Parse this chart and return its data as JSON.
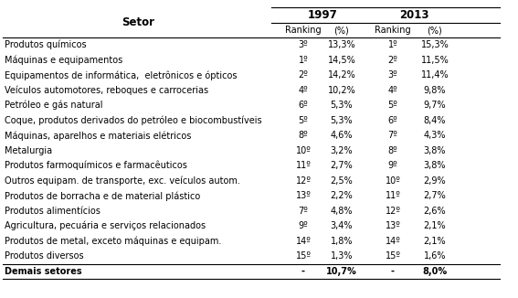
{
  "title_col": "Setor",
  "year_headers": [
    "1997",
    "2013"
  ],
  "sub_headers": [
    "Ranking",
    "(%)",
    "Ranking",
    "(%)"
  ],
  "rows": [
    [
      "Produtos químicos",
      "3º",
      "13,3%",
      "1º",
      "15,3%"
    ],
    [
      "Máquinas e equipamentos",
      "1º",
      "14,5%",
      "2º",
      "11,5%"
    ],
    [
      "Equipamentos de informática,  eletrônicos e ópticos",
      "2º",
      "14,2%",
      "3º",
      "11,4%"
    ],
    [
      "Veículos automotores, reboques e carrocerias",
      "4º",
      "10,2%",
      "4º",
      "9,8%"
    ],
    [
      "Petróleo e gás natural",
      "6º",
      "5,3%",
      "5º",
      "9,7%"
    ],
    [
      "Coque, produtos derivados do petróleo e biocombustíveis",
      "5º",
      "5,3%",
      "6º",
      "8,4%"
    ],
    [
      "Máquinas, aparelhos e materiais elétricos",
      "8º",
      "4,6%",
      "7º",
      "4,3%"
    ],
    [
      "Metalurgia",
      "10º",
      "3,2%",
      "8º",
      "3,8%"
    ],
    [
      "Produtos farmoquímicos e farmacêuticos",
      "11º",
      "2,7%",
      "9º",
      "3,8%"
    ],
    [
      "Outros equipam. de transporte, exc. veículos autom.",
      "12º",
      "2,5%",
      "10º",
      "2,9%"
    ],
    [
      "Produtos de borracha e de material plástico",
      "13º",
      "2,2%",
      "11º",
      "2,7%"
    ],
    [
      "Produtos alimentícios",
      "7º",
      "4,8%",
      "12º",
      "2,6%"
    ],
    [
      "Agricultura, pecuária e serviços relacionados",
      "9º",
      "3,4%",
      "13º",
      "2,1%"
    ],
    [
      "Produtos de metal, exceto máquinas e equipam.",
      "14º",
      "1,8%",
      "14º",
      "2,1%"
    ],
    [
      "Produtos diversos",
      "15º",
      "1,3%",
      "15º",
      "1,6%"
    ]
  ],
  "footer_row": [
    "Demais setores",
    "-",
    "10,7%",
    "-",
    "8,0%"
  ],
  "bg_color": "#ffffff",
  "font_size": 7.0,
  "header_font_size": 8.5
}
